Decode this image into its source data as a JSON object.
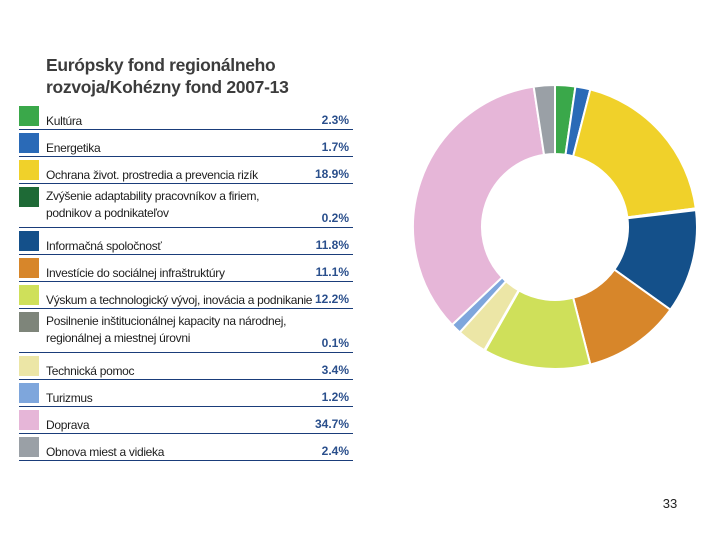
{
  "slide_number": "33",
  "chart_data": {
    "type": "pie",
    "style": "donut",
    "title": "Európsky fond regionálneho rozvoja/Kohézny fond 2007-13",
    "title_lines": [
      "Európsky fond regionálneho",
      "rozvoja/Kohézny fond 2007-13"
    ],
    "legend_position": "left",
    "slices": [
      {
        "label": "Kultúra",
        "lines": [
          "Kultúra"
        ],
        "value": 2.3,
        "display": "2.3%",
        "color": "#3aa84a"
      },
      {
        "label": "Energetika",
        "lines": [
          "Energetika"
        ],
        "value": 1.7,
        "display": "1.7%",
        "color": "#2a6ab7"
      },
      {
        "label": "Ochrana život. prostredia a prevencia rizík",
        "lines": [
          "Ochrana život. prostredia a prevencia rizík"
        ],
        "value": 18.9,
        "display": "18.9%",
        "color": "#f0d12a"
      },
      {
        "label": "Zvýšenie adaptability pracovníkov a firiem, podnikov a podnikateľov",
        "lines": [
          "Zvýšenie adaptability pracovníkov a firiem,",
          "podnikov a podnikateľov"
        ],
        "value": 0.2,
        "display": "0.2%",
        "color": "#1e6a36"
      },
      {
        "label": "Informačná spoločnosť",
        "lines": [
          "Informačná spoločnosť"
        ],
        "value": 11.8,
        "display": "11.8%",
        "color": "#14508a"
      },
      {
        "label": "Investície do sociálnej infraštruktúry",
        "lines": [
          "Investície do sociálnej infraštruktúry"
        ],
        "value": 11.1,
        "display": "11.1%",
        "color": "#d7862a"
      },
      {
        "label": "Výskum a technologický vývoj, inovácia a podnikanie",
        "lines": [
          "Výskum a technologický vývoj, inovácia a podnikanie"
        ],
        "value": 12.2,
        "display": "12.2%",
        "color": "#cfe05a"
      },
      {
        "label": "Posilnenie inštitucionálnej kapacity na národnej, regionálnej a miestnej úrovni",
        "lines": [
          "Posilnenie inštitucionálnej kapacity na národnej,",
          "regionálnej a miestnej úrovni"
        ],
        "value": 0.1,
        "display": "0.1%",
        "color": "#7e857a"
      },
      {
        "label": "Technická pomoc",
        "lines": [
          "Technická pomoc"
        ],
        "value": 3.4,
        "display": "3.4%",
        "color": "#ece6a6"
      },
      {
        "label": "Turizmus",
        "lines": [
          "Turizmus"
        ],
        "value": 1.2,
        "display": "1.2%",
        "color": "#7ea6dc"
      },
      {
        "label": "Doprava",
        "lines": [
          "Doprava"
        ],
        "value": 34.7,
        "display": "34.7%",
        "color": "#e6b6d8"
      },
      {
        "label": "Obnova miest a vidieka",
        "lines": [
          "Obnova miest a vidieka"
        ],
        "value": 2.4,
        "display": "2.4%",
        "color": "#9aa0a6"
      }
    ]
  }
}
